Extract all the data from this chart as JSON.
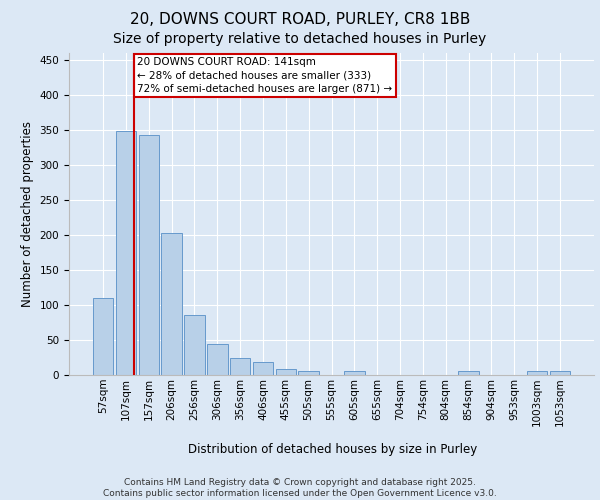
{
  "title_line1": "20, DOWNS COURT ROAD, PURLEY, CR8 1BB",
  "title_line2": "Size of property relative to detached houses in Purley",
  "xlabel": "Distribution of detached houses by size in Purley",
  "ylabel": "Number of detached properties",
  "categories": [
    "57sqm",
    "107sqm",
    "157sqm",
    "206sqm",
    "256sqm",
    "306sqm",
    "356sqm",
    "406sqm",
    "455sqm",
    "505sqm",
    "555sqm",
    "605sqm",
    "655sqm",
    "704sqm",
    "754sqm",
    "804sqm",
    "854sqm",
    "904sqm",
    "953sqm",
    "1003sqm",
    "1053sqm"
  ],
  "values": [
    110,
    348,
    342,
    203,
    85,
    44,
    24,
    19,
    9,
    6,
    0,
    6,
    0,
    0,
    0,
    0,
    6,
    0,
    0,
    6,
    6
  ],
  "bar_color": "#b8d0e8",
  "bar_edge_color": "#6699cc",
  "red_line_x": 1.34,
  "annotation_text": "20 DOWNS COURT ROAD: 141sqm\n← 28% of detached houses are smaller (333)\n72% of semi-detached houses are larger (871) →",
  "annotation_box_color": "#ffffff",
  "annotation_box_edge": "#cc0000",
  "ylim": [
    0,
    460
  ],
  "yticks": [
    0,
    50,
    100,
    150,
    200,
    250,
    300,
    350,
    400,
    450
  ],
  "bg_color": "#dce8f5",
  "plot_bg_color": "#dce8f5",
  "grid_color": "#ffffff",
  "footer": "Contains HM Land Registry data © Crown copyright and database right 2025.\nContains public sector information licensed under the Open Government Licence v3.0.",
  "title_fontsize": 11,
  "subtitle_fontsize": 10,
  "axis_label_fontsize": 8.5,
  "tick_fontsize": 7.5,
  "footer_fontsize": 6.5,
  "annot_fontsize": 7.5
}
